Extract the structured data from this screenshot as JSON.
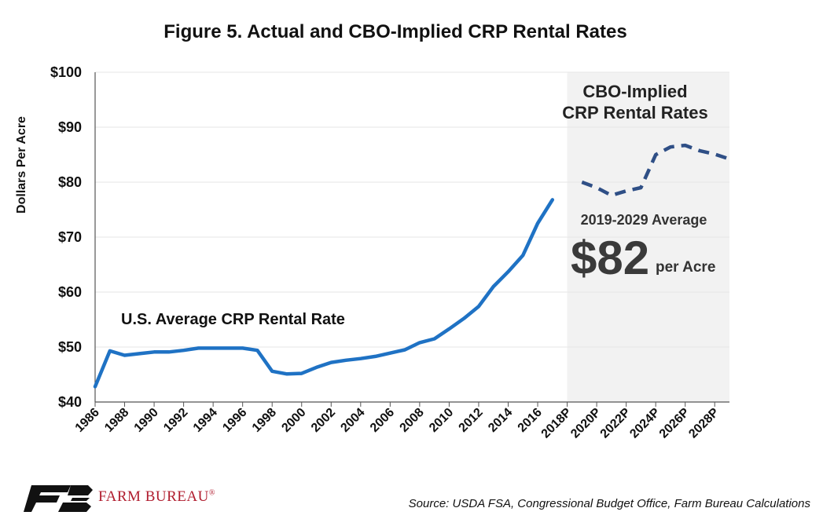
{
  "chart_data": {
    "type": "line",
    "title": "Figure 5. Actual and CBO-Implied CRP Rental Rates",
    "ylabel": "Dollars Per Acre",
    "xlabel": "",
    "ylim": [
      40,
      100
    ],
    "y_ticks": [
      "$40",
      "$50",
      "$60",
      "$70",
      "$80",
      "$90",
      "$100"
    ],
    "y_tick_values": [
      40,
      50,
      60,
      70,
      80,
      90,
      100
    ],
    "x_tick_labels": [
      "1986",
      "1988",
      "1990",
      "1992",
      "1994",
      "1996",
      "1998",
      "2000",
      "2002",
      "2004",
      "2006",
      "2008",
      "2010",
      "2012",
      "2014",
      "2016",
      "2018P",
      "2020P",
      "2022P",
      "2024P",
      "2026P",
      "2028P"
    ],
    "grid": true,
    "series": [
      {
        "label": "U.S. Average CRP Rental Rate",
        "style": "solid",
        "color": "#1f72c4",
        "x": [
          1986,
          1987,
          1988,
          1989,
          1990,
          1991,
          1992,
          1993,
          1994,
          1995,
          1996,
          1997,
          1998,
          1999,
          2000,
          2001,
          2002,
          2003,
          2004,
          2005,
          2006,
          2007,
          2008,
          2009,
          2010,
          2011,
          2012,
          2013,
          2014,
          2015,
          2016,
          2017
        ],
        "values": [
          42.8,
          49.3,
          48.5,
          48.8,
          49.1,
          49.1,
          49.4,
          49.8,
          49.8,
          49.8,
          49.8,
          49.4,
          45.6,
          45.1,
          45.2,
          46.3,
          47.2,
          47.6,
          47.9,
          48.3,
          48.9,
          49.5,
          50.8,
          51.5,
          53.3,
          55.2,
          57.4,
          61.0,
          63.7,
          66.7,
          72.5,
          76.8
        ]
      },
      {
        "label": "CBO-Implied CRP Rental Rates",
        "style": "dashed",
        "color": "#2f4f86",
        "x": [
          2019,
          2020,
          2021,
          2022,
          2023,
          2024,
          2025,
          2026,
          2027,
          2028,
          2029
        ],
        "values": [
          80.0,
          79.0,
          77.6,
          78.4,
          79.0,
          85.0,
          86.4,
          86.7,
          85.7,
          85.1,
          84.2
        ]
      }
    ],
    "projection_shading": {
      "from": 2018,
      "to": 2029,
      "color": "#f2f2f2"
    },
    "annotations": {
      "projection_title_line1": "CBO-Implied",
      "projection_title_line2": "CRP Rental Rates",
      "average_label": "2019-2029 Average",
      "average_value": "$82",
      "average_unit": "per Acre"
    }
  },
  "footer": {
    "source": "Source: USDA FSA, Congressional Budget Office, Farm Bureau Calculations",
    "logo_text": "FARM BUREAU",
    "logo_mark": "®"
  }
}
